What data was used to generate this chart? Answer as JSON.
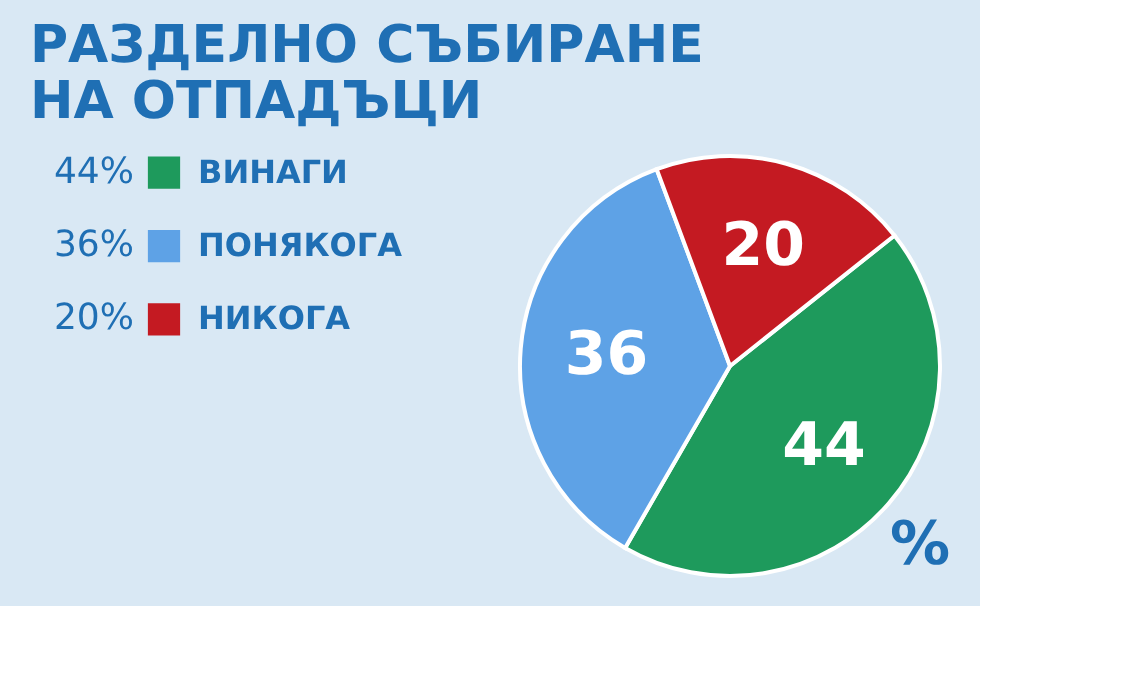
{
  "chart_data": {
    "type": "pie",
    "title": [
      "РАЗДЕЛНО СЪБИРАНЕ",
      "НА ОТПАДЪЦИ"
    ],
    "categories": [
      "ВИНАГИ",
      "ПОНЯКОГА",
      "НИКОГА"
    ],
    "values": [
      44,
      36,
      20
    ],
    "colors": [
      "#1e9a5c",
      "#5ea2e6",
      "#c41a22"
    ],
    "data_labels": true,
    "legend": "left",
    "annotations": [
      "44%",
      "36%",
      "20%",
      "%"
    ]
  }
}
